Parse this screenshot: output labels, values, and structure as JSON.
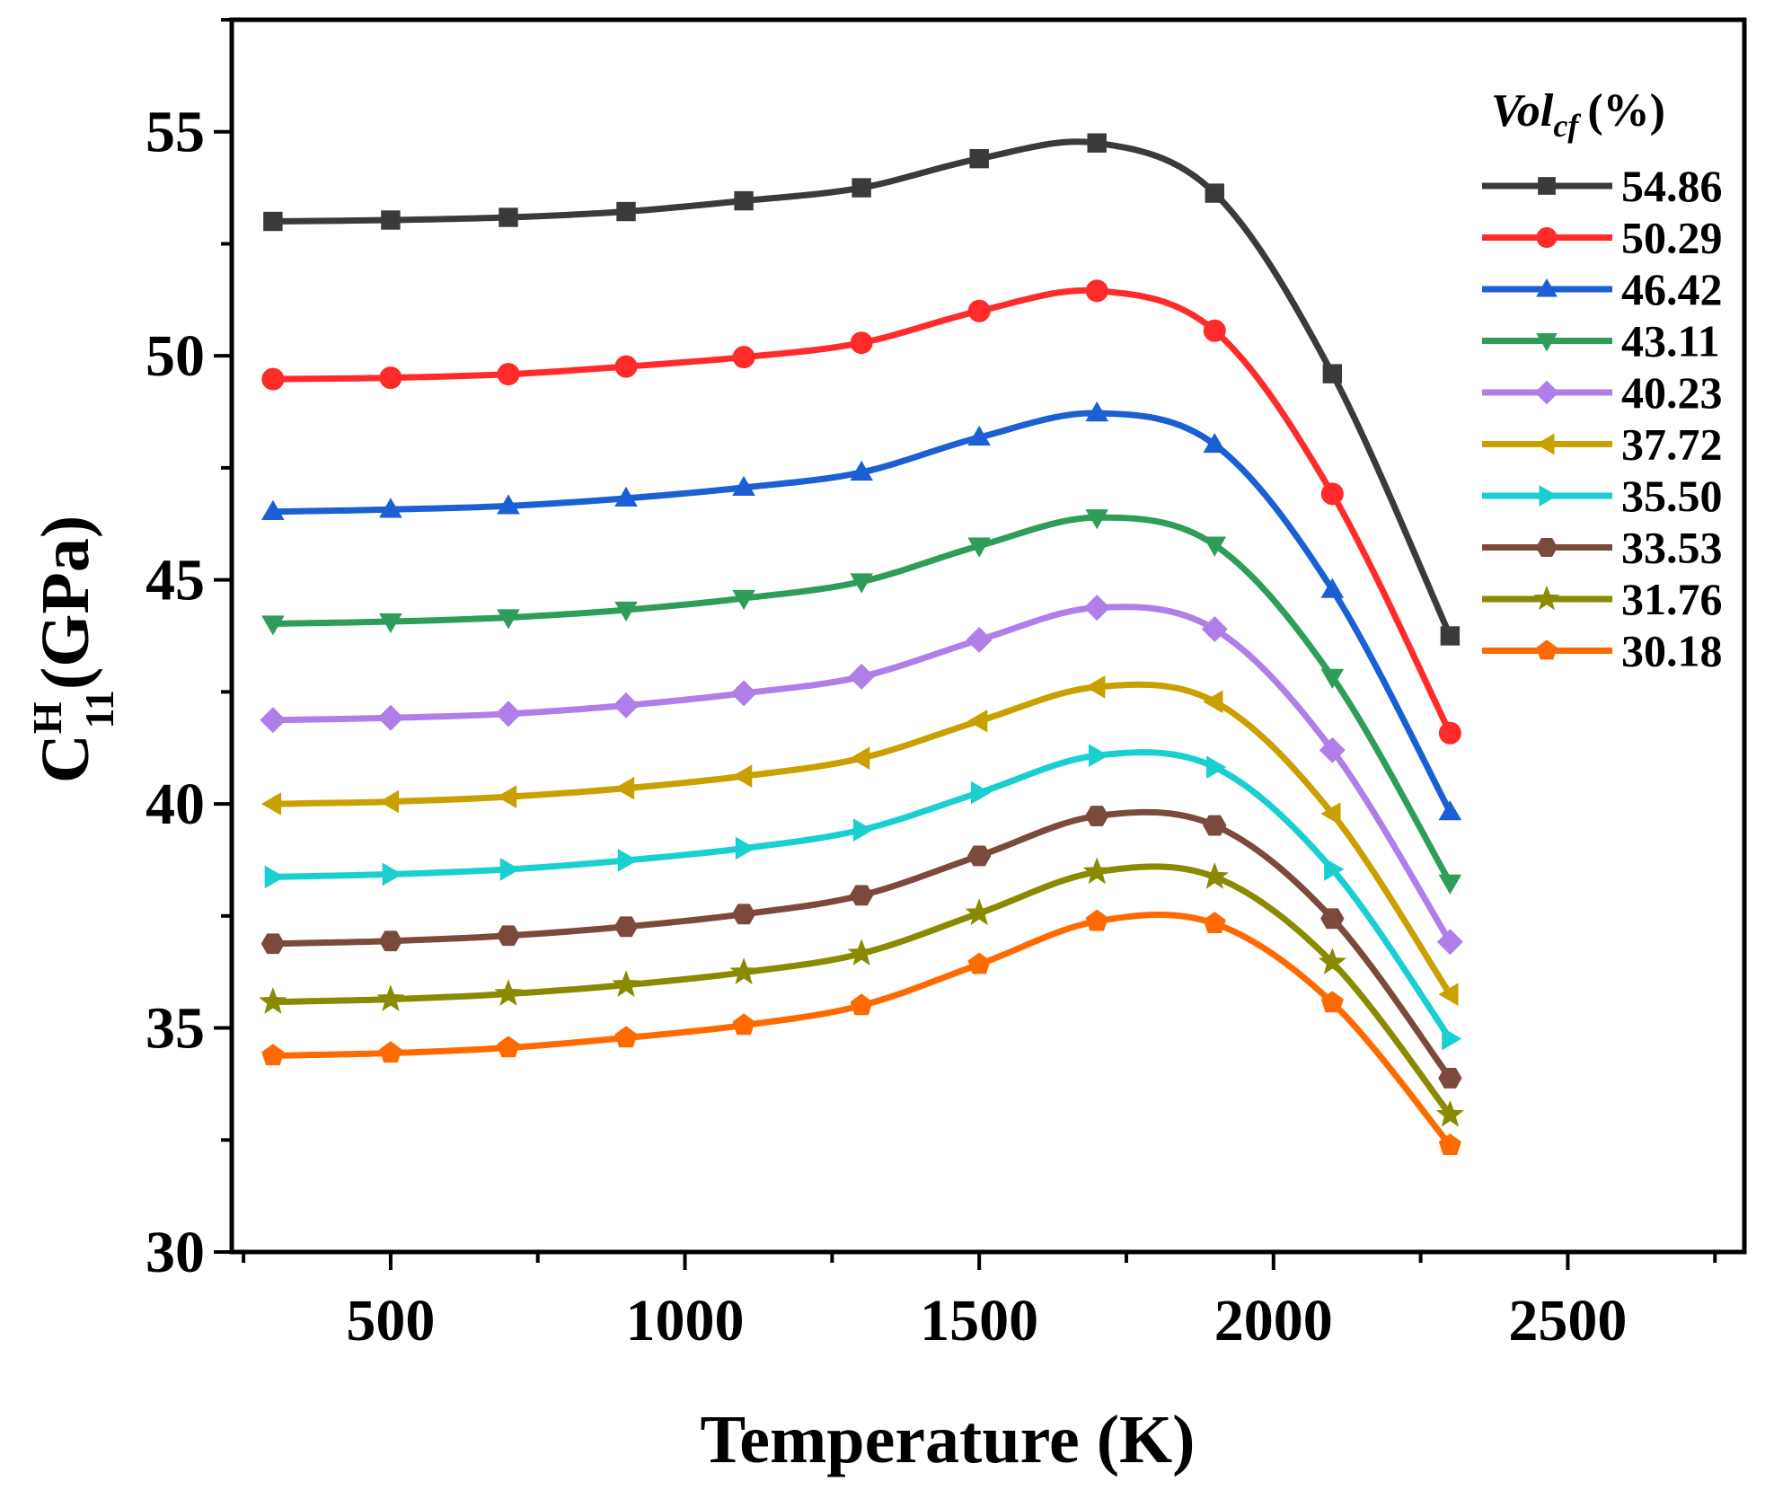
{
  "chart_data": {
    "type": "line",
    "xlabel": "Temperature (K)",
    "ylabel": {
      "base": "C",
      "superscript": "H",
      "subscript": "11",
      "unit": "(GPa)"
    },
    "xlim": [
      230,
      2800
    ],
    "ylim": [
      30,
      57.5
    ],
    "xticks": [
      500,
      1000,
      1500,
      2000,
      2500
    ],
    "yticks": [
      30,
      35,
      40,
      45,
      50,
      55
    ],
    "x": [
      300,
      500,
      700,
      900,
      1100,
      1300,
      1500,
      1700,
      1900,
      2100,
      2300
    ],
    "legend": {
      "title_main": "Vol",
      "title_sub": "cf",
      "title_unit": "(%)",
      "position": "top-right"
    },
    "series": [
      {
        "name": "54.86",
        "color": "#3a3a3a",
        "marker": "square",
        "values": [
          53.0,
          53.03,
          53.09,
          53.22,
          53.46,
          53.75,
          54.4,
          54.75,
          53.63,
          49.6,
          43.75
        ]
      },
      {
        "name": "50.29",
        "color": "#ff2a2a",
        "marker": "circle",
        "values": [
          49.48,
          49.51,
          49.59,
          49.76,
          49.97,
          50.29,
          51.0,
          51.45,
          50.56,
          46.92,
          41.58
        ]
      },
      {
        "name": "46.42",
        "color": "#1a5fd4",
        "marker": "triangle-up",
        "values": [
          46.52,
          46.57,
          46.65,
          46.82,
          47.06,
          47.4,
          48.18,
          48.72,
          48.02,
          44.78,
          39.82
        ]
      },
      {
        "name": "43.11",
        "color": "#2e9d5a",
        "marker": "triangle-down",
        "values": [
          44.02,
          44.07,
          44.16,
          44.33,
          44.59,
          44.96,
          45.76,
          46.39,
          45.78,
          42.83,
          38.24
        ]
      },
      {
        "name": "40.23",
        "color": "#b07ee8",
        "marker": "diamond",
        "values": [
          41.87,
          41.92,
          42.01,
          42.2,
          42.47,
          42.84,
          43.66,
          44.38,
          43.9,
          41.2,
          36.92
        ]
      },
      {
        "name": "37.72",
        "color": "#c9a000",
        "marker": "triangle-left",
        "values": [
          40.0,
          40.05,
          40.16,
          40.35,
          40.62,
          41.02,
          41.85,
          42.61,
          42.28,
          39.78,
          35.75
        ]
      },
      {
        "name": "35.50",
        "color": "#19cfd0",
        "marker": "triangle-right",
        "values": [
          38.37,
          38.43,
          38.54,
          38.74,
          39.01,
          39.42,
          40.25,
          41.08,
          40.82,
          38.54,
          34.76
        ]
      },
      {
        "name": "33.53",
        "color": "#7b4a3c",
        "marker": "hexagon",
        "values": [
          36.88,
          36.94,
          37.06,
          37.26,
          37.54,
          37.96,
          38.84,
          39.73,
          39.52,
          37.44,
          33.88
        ]
      },
      {
        "name": "31.76",
        "color": "#8a8a00",
        "marker": "star",
        "values": [
          35.58,
          35.64,
          35.76,
          35.96,
          36.24,
          36.66,
          37.56,
          38.48,
          38.37,
          36.46,
          33.06
        ]
      },
      {
        "name": "30.18",
        "color": "#ff6a00",
        "marker": "pentagon",
        "values": [
          34.38,
          34.44,
          34.56,
          34.78,
          35.06,
          35.5,
          36.42,
          37.38,
          37.33,
          35.56,
          32.38
        ]
      }
    ]
  }
}
